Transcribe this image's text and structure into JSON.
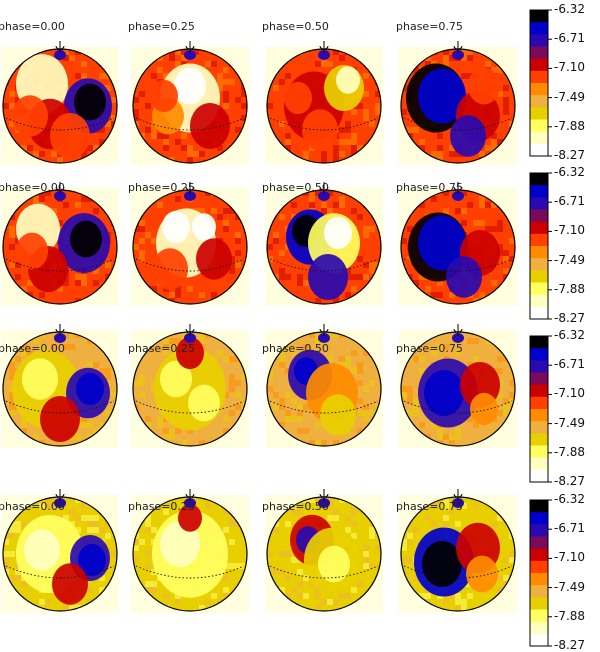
{
  "phases": [
    "phase=0.00",
    "phase=0.25",
    "phase=0.50",
    "phase=0.75"
  ],
  "colorbar_ticks": [
    "-6.32",
    "-6.71",
    "-7.10",
    "-7.49",
    "-7.88",
    "-8.27"
  ],
  "colors": {
    "palette": [
      "#ffffff",
      "#ffffc0",
      "#ffff60",
      "#e8d000",
      "#f0b040",
      "#ff8c00",
      "#ff4000",
      "#cc0000",
      "#7a0a5a",
      "#2a0ab0",
      "#0000cc",
      "#000000"
    ],
    "background_tint": "#ffffe0",
    "disk_outline": "#000000"
  },
  "icons": {
    "rotation_axis": "rotation-axis-icon"
  }
}
